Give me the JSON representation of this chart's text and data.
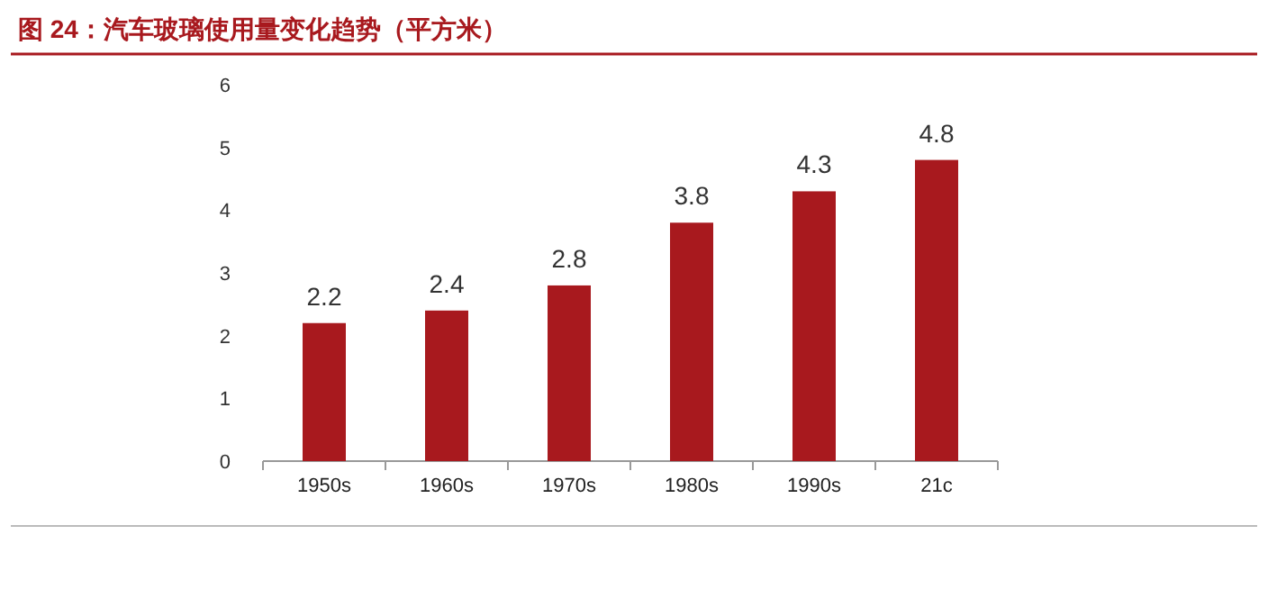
{
  "chart_data": {
    "type": "bar",
    "title": "图 24：汽车玻璃使用量变化趋势（平方米）",
    "categories": [
      "1950s",
      "1960s",
      "1970s",
      "1980s",
      "1990s",
      "21c"
    ],
    "values": [
      2.2,
      2.4,
      2.8,
      3.8,
      4.3,
      4.8
    ],
    "color": "#a8191e",
    "ylim": [
      0,
      6
    ],
    "yticks": [
      0,
      1,
      2,
      3,
      4,
      5,
      6
    ],
    "data_labels": true
  }
}
